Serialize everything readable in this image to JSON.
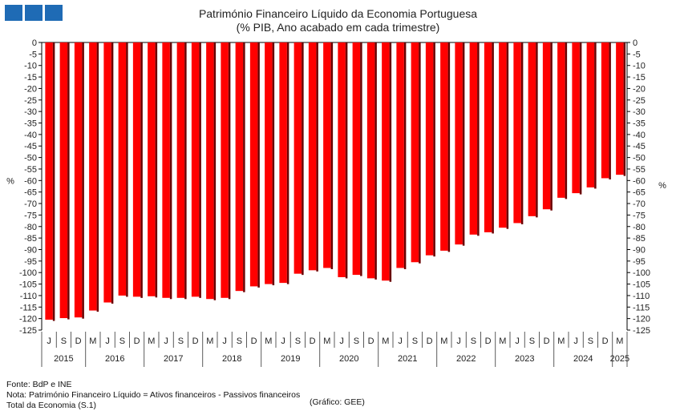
{
  "header": {
    "title": "Património Financeiro Líquido da Economia Portuguesa",
    "subtitle": "(% PIB, Ano acabado em cada trimestre)"
  },
  "chart_data": {
    "type": "bar",
    "ylabel_left": "%",
    "ylabel_right": "%",
    "ylim": [
      -125,
      0
    ],
    "yticks": [
      0,
      -5,
      -10,
      -15,
      -20,
      -25,
      -30,
      -35,
      -40,
      -45,
      -50,
      -55,
      -60,
      -65,
      -70,
      -75,
      -80,
      -85,
      -90,
      -95,
      -100,
      -105,
      -110,
      -115,
      -120,
      -125
    ],
    "bar_color": "#ff0000",
    "categories": [
      "J",
      "S",
      "D",
      "M",
      "J",
      "S",
      "D",
      "M",
      "J",
      "S",
      "D",
      "M",
      "J",
      "S",
      "D",
      "M",
      "J",
      "S",
      "D",
      "M",
      "J",
      "S",
      "D",
      "M",
      "J",
      "S",
      "D",
      "M",
      "J",
      "S",
      "D",
      "M",
      "J",
      "S",
      "D",
      "M",
      "J",
      "S",
      "D",
      "M"
    ],
    "years": [
      {
        "label": "2015",
        "start": 0,
        "count": 3
      },
      {
        "label": "2016",
        "start": 3,
        "count": 4
      },
      {
        "label": "2017",
        "start": 7,
        "count": 4
      },
      {
        "label": "2018",
        "start": 11,
        "count": 4
      },
      {
        "label": "2019",
        "start": 15,
        "count": 4
      },
      {
        "label": "2020",
        "start": 19,
        "count": 4
      },
      {
        "label": "2021",
        "start": 23,
        "count": 4
      },
      {
        "label": "2022",
        "start": 27,
        "count": 4
      },
      {
        "label": "2023",
        "start": 31,
        "count": 4
      },
      {
        "label": "2024",
        "start": 35,
        "count": 4
      },
      {
        "label": "2025",
        "start": 39,
        "count": 1
      }
    ],
    "values": [
      -120.5,
      -119.8,
      -119.5,
      -116.5,
      -113,
      -110,
      -110.5,
      -110.3,
      -111,
      -111,
      -110.5,
      -111.5,
      -111,
      -108,
      -106,
      -105,
      -104.5,
      -100.5,
      -99,
      -98,
      -102,
      -101,
      -102.5,
      -103.5,
      -98,
      -95.5,
      -92.5,
      -90.5,
      -87.8,
      -83.5,
      -82.5,
      -80.5,
      -78.5,
      -75.5,
      -72.5,
      -67.5,
      -65.5,
      -63,
      -59,
      -57.5
    ]
  },
  "footer": {
    "source": "Fonte: BdP e INE",
    "note": "Nota: Património Financeiro Líquido = Ativos financeiros - Passivos financeiros",
    "total": "Total da Economia (S.1)",
    "credit": "(Gráfico: GEE)"
  }
}
